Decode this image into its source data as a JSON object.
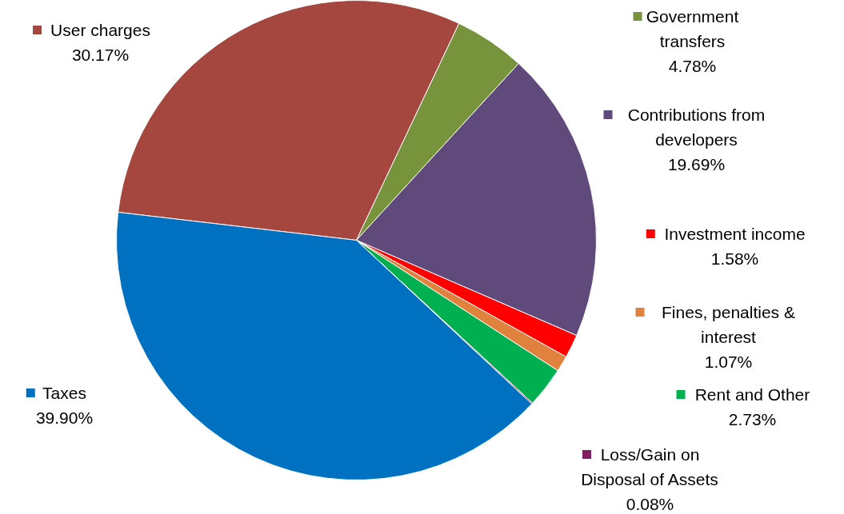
{
  "chart_data": {
    "type": "pie",
    "categories": [
      "User charges",
      "Government transfers",
      "Contributions from developers",
      "Investment income",
      "Fines, penalties & interest",
      "Rent and Other",
      "Loss/Gain on Disposal of Assets",
      "Taxes"
    ],
    "values": [
      30.17,
      4.78,
      19.69,
      1.58,
      1.07,
      2.73,
      0.08,
      39.9
    ],
    "colors": [
      "#a5473f",
      "#77933c",
      "#604a7b",
      "#ff0000",
      "#e0823e",
      "#00b050",
      "#7f1f5f",
      "#0070c0"
    ],
    "value_labels": [
      "30.17%",
      "4.78%",
      "19.69%",
      "1.58%",
      "1.07%",
      "2.73%",
      "0.08%",
      "39.90%"
    ],
    "legend": "right"
  }
}
